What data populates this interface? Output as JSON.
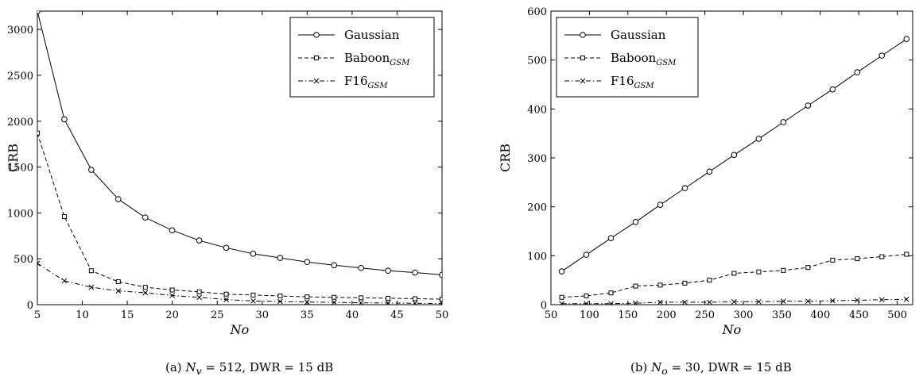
{
  "chart_data": [
    {
      "type": "line",
      "caption": {
        "prefix": "(a)",
        "var": "N",
        "sub": "v",
        "rest": " = 512, DWR = 15 dB"
      },
      "xlabel": "No",
      "ylabel": "CRB",
      "xlim": [
        5,
        50
      ],
      "ylim": [
        0,
        3200
      ],
      "xticks": [
        5,
        10,
        15,
        20,
        25,
        30,
        35,
        40,
        45,
        50
      ],
      "yticks": [
        0,
        500,
        1000,
        1500,
        2000,
        2500,
        3000
      ],
      "legend_position": "top-right",
      "x": [
        5,
        8,
        11,
        14,
        17,
        20,
        23,
        26,
        29,
        32,
        35,
        38,
        41,
        44,
        47,
        50
      ],
      "series": [
        {
          "name": "Gaussian",
          "subscript": "",
          "style": "solid",
          "marker": "circle",
          "values": [
            3200,
            2020,
            1470,
            1150,
            950,
            810,
            700,
            620,
            555,
            510,
            465,
            430,
            400,
            370,
            350,
            325
          ]
        },
        {
          "name": "Baboon",
          "subscript": "GSM",
          "style": "dashed",
          "marker": "square",
          "values": [
            1870,
            960,
            370,
            250,
            190,
            160,
            140,
            115,
            105,
            95,
            85,
            80,
            75,
            70,
            65,
            60
          ]
        },
        {
          "name": "F16",
          "subscript": "GSM",
          "style": "dashdot",
          "marker": "x",
          "values": [
            450,
            260,
            190,
            150,
            130,
            100,
            80,
            55,
            40,
            35,
            28,
            25,
            20,
            18,
            15,
            12
          ]
        }
      ]
    },
    {
      "type": "line",
      "caption": {
        "prefix": "(b)",
        "var": "N",
        "sub": "o",
        "rest": " = 30, DWR = 15 dB"
      },
      "xlabel": "No",
      "ylabel": "CRB",
      "xlim": [
        50,
        520
      ],
      "ylim": [
        0,
        600
      ],
      "xticks": [
        50,
        100,
        150,
        200,
        250,
        300,
        350,
        400,
        450,
        500
      ],
      "yticks": [
        0,
        100,
        200,
        300,
        400,
        500,
        600
      ],
      "legend_position": "top-left",
      "x": [
        64,
        96,
        128,
        160,
        192,
        224,
        256,
        288,
        320,
        352,
        384,
        416,
        448,
        480,
        512
      ],
      "series": [
        {
          "name": "Gaussian",
          "subscript": "",
          "style": "solid",
          "marker": "circle",
          "values": [
            68,
            102,
            136,
            169,
            204,
            238,
            272,
            306,
            339,
            373,
            407,
            440,
            475,
            509,
            543
          ]
        },
        {
          "name": "Baboon",
          "subscript": "GSM",
          "style": "dashed",
          "marker": "square",
          "values": [
            15,
            18,
            24,
            38,
            40,
            44,
            50,
            64,
            67,
            70,
            76,
            91,
            94,
            98,
            103
          ]
        },
        {
          "name": "F16",
          "subscript": "GSM",
          "style": "dashdot",
          "marker": "x",
          "values": [
            2,
            2,
            2,
            3,
            5,
            5,
            5,
            6,
            6,
            7,
            7,
            8,
            9,
            10,
            11
          ]
        }
      ]
    }
  ]
}
